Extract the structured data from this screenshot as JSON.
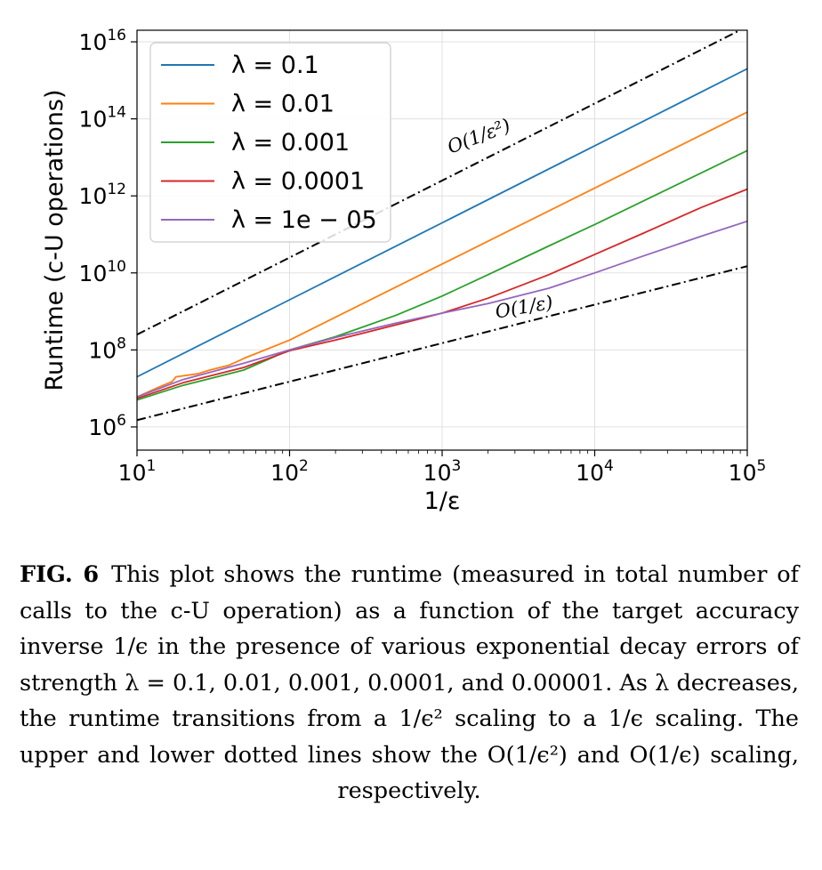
{
  "chart_data": {
    "type": "line",
    "xlabel": "1/ε",
    "ylabel": "Runtime (c-U operations)",
    "x_scale": "log",
    "y_scale": "log",
    "xlim": [
      10,
      100000
    ],
    "ylim": [
      250000,
      20000000000000000
    ],
    "x_ticks": [
      10,
      100,
      1000,
      10000,
      100000
    ],
    "y_ticks": [
      1000000,
      100000000,
      10000000000,
      1000000000000,
      100000000000000,
      10000000000000000
    ],
    "x_tick_labels": [
      {
        "base": "10",
        "exp": "1"
      },
      {
        "base": "10",
        "exp": "2"
      },
      {
        "base": "10",
        "exp": "3"
      },
      {
        "base": "10",
        "exp": "4"
      },
      {
        "base": "10",
        "exp": "5"
      }
    ],
    "y_tick_labels": [
      {
        "base": "10",
        "exp": "6"
      },
      {
        "base": "10",
        "exp": "8"
      },
      {
        "base": "10",
        "exp": "10"
      },
      {
        "base": "10",
        "exp": "12"
      },
      {
        "base": "10",
        "exp": "14"
      },
      {
        "base": "10",
        "exp": "16"
      }
    ],
    "grid": true,
    "legend_position": "top-left",
    "series": [
      {
        "name": "λ = 0.1",
        "color": "#1f77b4",
        "x": [
          10,
          100,
          1000,
          10000,
          100000
        ],
        "y": [
          20000000,
          2000000000,
          200000000000,
          20000000000000,
          2000000000000000
        ]
      },
      {
        "name": "λ = 0.01",
        "color": "#ff7f0e",
        "x": [
          10,
          14,
          17,
          18,
          25,
          30,
          40,
          48,
          50,
          100,
          1000,
          10000,
          100000
        ],
        "y": [
          6000000,
          11000000,
          15000000,
          20000000,
          24000000,
          30000000,
          40000000,
          55000000,
          60000000,
          180000000,
          17000000000,
          1600000000000,
          150000000000000
        ]
      },
      {
        "name": "λ = 0.001",
        "color": "#2ca02c",
        "x": [
          10,
          20,
          50,
          100,
          200,
          500,
          1000,
          2000,
          5000,
          10000,
          100000
        ],
        "y": [
          5000000,
          12000000,
          30000000,
          100000000,
          220000000,
          800000000,
          2500000000,
          9000000000,
          50000000000,
          180000000000,
          15000000000000
        ]
      },
      {
        "name": "λ = 0.0001",
        "color": "#d62728",
        "x": [
          10,
          20,
          50,
          100,
          200,
          500,
          1000,
          2000,
          5000,
          10000,
          20000,
          50000,
          100000
        ],
        "y": [
          5500000,
          14000000,
          35000000,
          95000000,
          180000000,
          450000000,
          900000000,
          2200000000,
          9000000000,
          30000000000,
          100000000000,
          500000000000,
          1500000000000
        ]
      },
      {
        "name": "λ = 1e − 05",
        "color": "#9467bd",
        "x": [
          10,
          20,
          50,
          100,
          200,
          500,
          1000,
          2000,
          5000,
          10000,
          20000,
          50000,
          100000
        ],
        "y": [
          6000000,
          17000000,
          45000000,
          100000000,
          210000000,
          500000000,
          900000000,
          1600000000,
          4000000000,
          10000000000,
          26000000000,
          90000000000,
          220000000000
        ]
      },
      {
        "name": "",
        "style": "dash-dot",
        "color": "#000000",
        "x": [
          10,
          100000
        ],
        "y": [
          250000000,
          25000000000000000
        ]
      },
      {
        "name": "",
        "style": "dash-dot",
        "color": "#000000",
        "x": [
          10,
          100000
        ],
        "y": [
          1500000,
          15000000000
        ]
      }
    ],
    "annotations": [
      {
        "text": "O(1/ε²)",
        "x": 1800,
        "y": 25000000000000
      },
      {
        "text": "O(1/ε)",
        "x": 3500,
        "y": 900000000
      }
    ]
  },
  "caption": {
    "label": "FIG. 6",
    "text": "This plot shows the runtime (measured in total number of calls to the c-U operation) as a function of the target accuracy inverse 1/ϵ in the presence of various exponential decay errors of strength λ = 0.1, 0.01, 0.001, 0.0001, and 0.00001. As λ decreases, the runtime transitions from a 1/ϵ² scaling to a 1/ϵ scaling. The upper and lower dotted lines show the O(1/ϵ²) and O(1/ϵ) scaling, respectively."
  }
}
